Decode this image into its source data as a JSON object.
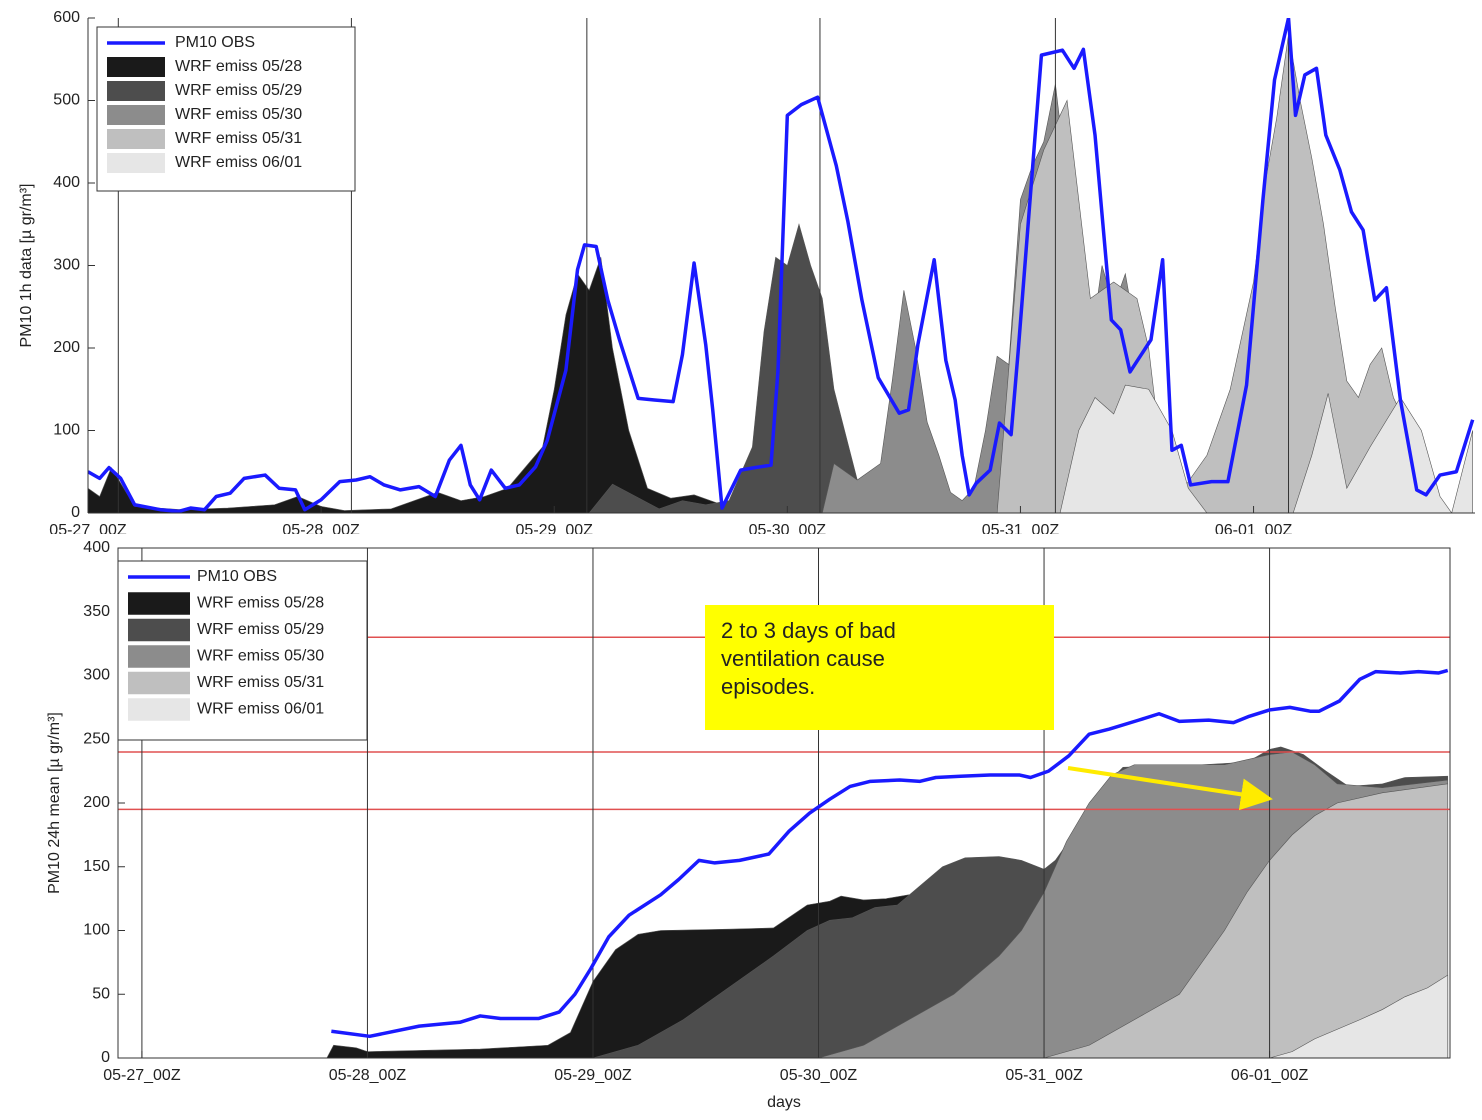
{
  "chart_data": [
    {
      "type": "area",
      "ylabel": "PM10 1h data [µ gr/m³]",
      "xlim": [
        0,
        5.95
      ],
      "ylim": [
        0,
        600
      ],
      "xticks": [
        {
          "value": 0,
          "label": "05-27_00Z"
        },
        {
          "value": 1,
          "label": "05-28_00Z"
        },
        {
          "value": 2,
          "label": "05-29_00Z"
        },
        {
          "value": 3,
          "label": "05-30_00Z"
        },
        {
          "value": 4,
          "label": "05-31_00Z"
        },
        {
          "value": 5,
          "label": "06-01_00Z"
        }
      ],
      "yticks": [
        0,
        100,
        200,
        300,
        400,
        500,
        600
      ],
      "vlines": [
        0.13,
        1.13,
        2.14,
        3.14,
        4.15,
        5.15
      ],
      "legend": "upper left",
      "series": [
        {
          "name": "PM10 OBS",
          "type": "line",
          "color": "#1a1aff",
          "x": [
            0,
            0.05,
            0.09,
            0.14,
            0.2,
            0.31,
            0.39,
            0.44,
            0.5,
            0.55,
            0.61,
            0.67,
            0.76,
            0.82,
            0.89,
            0.93,
            1.0,
            1.08,
            1.15,
            1.21,
            1.27,
            1.34,
            1.42,
            1.49,
            1.55,
            1.6,
            1.64,
            1.68,
            1.73,
            1.79,
            1.85,
            1.92,
            1.97,
            2.05,
            2.1,
            2.13,
            2.18,
            2.23,
            2.28,
            2.36,
            2.43,
            2.51,
            2.55,
            2.6,
            2.65,
            2.68,
            2.72,
            2.8,
            2.86,
            2.93,
            2.96,
            3.0,
            3.06,
            3.13,
            3.21,
            3.26,
            3.32,
            3.39,
            3.48,
            3.52,
            3.56,
            3.63,
            3.68,
            3.72,
            3.75,
            3.78,
            3.81,
            3.87,
            3.91,
            3.96,
            3.99,
            4.09,
            4.18,
            4.23,
            4.27,
            4.32,
            4.39,
            4.43,
            4.47,
            4.56,
            4.61,
            4.65,
            4.69,
            4.73,
            4.82,
            4.89,
            4.97,
            5.04,
            5.09,
            5.15,
            5.18,
            5.22,
            5.27,
            5.31,
            5.37,
            5.42,
            5.47,
            5.52,
            5.57,
            5.63,
            5.7,
            5.74,
            5.8,
            5.87,
            5.94
          ],
          "values": [
            50,
            42,
            55,
            42,
            10,
            4,
            2,
            6,
            4,
            20,
            24,
            42,
            46,
            30,
            28,
            4,
            16,
            38,
            40,
            44,
            34,
            28,
            32,
            20,
            64,
            82,
            34,
            16,
            52,
            30,
            34,
            56,
            88,
            173,
            295,
            325,
            323,
            258,
            210,
            139,
            137,
            135,
            192,
            303,
            204,
            125,
            6,
            52,
            55,
            58,
            173,
            482,
            495,
            504,
            421,
            353,
            258,
            164,
            121,
            125,
            204,
            307,
            185,
            137,
            70,
            22,
            36,
            52,
            109,
            95,
            195,
            555,
            561,
            539,
            562,
            458,
            234,
            222,
            171,
            210,
            307,
            76,
            82,
            34,
            38,
            38,
            155,
            379,
            525,
            600,
            482,
            531,
            539,
            458,
            416,
            365,
            343,
            258,
            273,
            137,
            28,
            22,
            46,
            50,
            113
          ]
        },
        {
          "name": "WRF emiss 05/28",
          "color": "#1a1a1a",
          "x": [
            0,
            0.05,
            0.1,
            0.2,
            0.4,
            0.6,
            0.8,
            0.9,
            1.0,
            1.1,
            1.3,
            1.5,
            1.6,
            1.7,
            1.8,
            1.95,
            2.0,
            2.05,
            2.1,
            2.15,
            2.2,
            2.25,
            2.32,
            2.4,
            2.5,
            2.6,
            2.7,
            2.75
          ],
          "values": [
            30,
            20,
            55,
            8,
            4,
            6,
            10,
            20,
            8,
            3,
            5,
            25,
            15,
            20,
            30,
            80,
            150,
            240,
            290,
            270,
            310,
            200,
            100,
            30,
            18,
            22,
            12,
            0
          ]
        },
        {
          "name": "WRF emiss 05/29",
          "color": "#4d4d4d",
          "x": [
            2.15,
            2.25,
            2.35,
            2.45,
            2.55,
            2.65,
            2.75,
            2.85,
            2.9,
            2.95,
            3.0,
            3.05,
            3.1,
            3.15,
            3.2,
            3.3,
            3.4,
            3.5,
            3.6
          ],
          "values": [
            0,
            35,
            20,
            5,
            15,
            10,
            15,
            80,
            220,
            310,
            300,
            350,
            300,
            260,
            150,
            40,
            20,
            5,
            0
          ]
        },
        {
          "name": "WRF emiss 05/30",
          "color": "#8c8c8c",
          "x": [
            3.15,
            3.2,
            3.3,
            3.4,
            3.45,
            3.5,
            3.55,
            3.6,
            3.65,
            3.7,
            3.75,
            3.8,
            3.85,
            3.9,
            3.95,
            4.0,
            4.05,
            4.1,
            4.15,
            4.2,
            4.25,
            4.3,
            4.35,
            4.4,
            4.45,
            4.5,
            4.55,
            4.6,
            4.65,
            4.7,
            4.75
          ],
          "values": [
            0,
            60,
            40,
            60,
            160,
            270,
            200,
            110,
            70,
            25,
            15,
            30,
            100,
            190,
            180,
            380,
            420,
            450,
            520,
            400,
            280,
            200,
            300,
            250,
            290,
            210,
            120,
            60,
            20,
            10,
            0
          ]
        },
        {
          "name": "WRF emiss 05/31",
          "color": "#bfbfbf",
          "x": [
            3.9,
            4.0,
            4.1,
            4.2,
            4.3,
            4.4,
            4.5,
            4.55,
            4.6,
            4.7,
            4.8,
            4.9,
            5.0,
            5.05,
            5.1,
            5.15,
            5.2,
            5.25,
            5.3,
            5.35,
            5.4,
            5.45,
            5.5,
            5.55,
            5.6,
            5.65,
            5.7
          ],
          "values": [
            0,
            350,
            440,
            500,
            260,
            280,
            260,
            200,
            80,
            30,
            70,
            150,
            280,
            400,
            480,
            580,
            500,
            430,
            350,
            250,
            160,
            140,
            180,
            200,
            140,
            110,
            0
          ]
        },
        {
          "name": "WRF emiss 06/01",
          "color": "#e6e6e6",
          "x": [
            4.17,
            4.25,
            4.32,
            4.4,
            4.45,
            4.55,
            4.65,
            4.72,
            4.8,
            5.17,
            5.25,
            5.32,
            5.4,
            5.5,
            5.63,
            5.72,
            5.8,
            5.85,
            5.94
          ],
          "values": [
            0,
            100,
            140,
            120,
            155,
            150,
            100,
            30,
            0,
            0,
            70,
            145,
            30,
            80,
            140,
            100,
            20,
            0,
            100
          ]
        }
      ]
    },
    {
      "type": "area",
      "ylabel": "PM10 24h mean [µ gr/m³]",
      "xlabel": "days",
      "xlim": [
        -0.106,
        5.8
      ],
      "ylim": [
        0,
        400
      ],
      "xticks": [
        {
          "value": 0,
          "label": "05-27_00Z"
        },
        {
          "value": 1,
          "label": "05-28_00Z"
        },
        {
          "value": 2,
          "label": "05-29_00Z"
        },
        {
          "value": 3,
          "label": "05-30_00Z"
        },
        {
          "value": 4,
          "label": "05-31_00Z"
        },
        {
          "value": 5,
          "label": "06-01_00Z"
        }
      ],
      "yticks": [
        0,
        50,
        100,
        150,
        200,
        250,
        300,
        350,
        400
      ],
      "vlines": [
        0,
        1,
        2,
        3,
        4,
        5
      ],
      "hlines": [
        195,
        240,
        330
      ],
      "hline_color": "#e05050",
      "annotation": "2 to 3 days of bad ventilation cause episodes.",
      "legend": "upper left",
      "series": [
        {
          "name": "PM10 OBS",
          "type": "line",
          "color": "#1a1aff",
          "x": [
            0.84,
            1.01,
            1.23,
            1.41,
            1.5,
            1.59,
            1.76,
            1.85,
            1.92,
            1.99,
            2.07,
            2.16,
            2.3,
            2.38,
            2.47,
            2.54,
            2.65,
            2.78,
            2.87,
            2.96,
            3.05,
            3.14,
            3.23,
            3.36,
            3.45,
            3.52,
            3.63,
            3.76,
            3.89,
            3.94,
            4.02,
            4.11,
            4.2,
            4.29,
            4.42,
            4.51,
            4.6,
            4.73,
            4.84,
            4.91,
            5.0,
            5.09,
            5.18,
            5.22,
            5.31,
            5.4,
            5.47,
            5.58,
            5.66,
            5.75,
            5.79
          ],
          "values": [
            21,
            17,
            25,
            28,
            33,
            31,
            31,
            36,
            50,
            70,
            95,
            112,
            128,
            140,
            155,
            153,
            155,
            160,
            178,
            192,
            203,
            213,
            217,
            218,
            217,
            220,
            221,
            222,
            222,
            220,
            225,
            237,
            254,
            258,
            265,
            270,
            264,
            265,
            263,
            268,
            273,
            275,
            272,
            272,
            280,
            297,
            303,
            302,
            303,
            302,
            304
          ]
        },
        {
          "name": "WRF emiss 05/28",
          "color": "#1a1a1a",
          "x": [
            0.82,
            0.85,
            0.95,
            1.0,
            1.5,
            1.8,
            1.9,
            2.0,
            2.1,
            2.2,
            2.3,
            2.6,
            2.8,
            2.95,
            3.05,
            3.1,
            3.2,
            3.3,
            3.4,
            3.5,
            3.6
          ],
          "values": [
            0,
            10,
            8,
            5,
            7,
            10,
            20,
            60,
            85,
            97,
            100,
            101,
            102,
            120,
            123,
            127,
            124,
            125,
            128,
            120,
            0
          ]
        },
        {
          "name": "WRF emiss 05/29",
          "color": "#4d4d4d",
          "x": [
            2.0,
            2.2,
            2.4,
            2.6,
            2.8,
            2.95,
            3.05,
            3.15,
            3.25,
            3.35,
            3.45,
            3.55,
            3.65,
            3.8,
            3.9,
            4.0,
            4.05,
            4.15,
            4.25,
            4.35,
            4.5,
            4.7,
            4.9,
            5.0,
            5.05,
            5.15,
            5.25,
            5.35,
            5.5,
            5.6,
            5.79
          ],
          "values": [
            0,
            10,
            30,
            55,
            80,
            100,
            108,
            110,
            118,
            120,
            135,
            150,
            157,
            158,
            155,
            148,
            155,
            180,
            210,
            228,
            229,
            230,
            232,
            242,
            244,
            238,
            225,
            213,
            215,
            220,
            221
          ]
        },
        {
          "name": "WRF emiss 05/30",
          "color": "#8c8c8c",
          "x": [
            3.0,
            3.2,
            3.4,
            3.6,
            3.8,
            3.9,
            4.0,
            4.1,
            4.2,
            4.3,
            4.4,
            4.6,
            4.8,
            5.0,
            5.1,
            5.2,
            5.3,
            5.5,
            5.79
          ],
          "values": [
            0,
            10,
            30,
            50,
            80,
            100,
            130,
            170,
            200,
            222,
            230,
            230,
            230,
            238,
            240,
            230,
            215,
            212,
            218
          ]
        },
        {
          "name": "WRF emiss 05/31",
          "color": "#bfbfbf",
          "x": [
            4.0,
            4.2,
            4.4,
            4.6,
            4.8,
            4.9,
            5.0,
            5.1,
            5.2,
            5.3,
            5.5,
            5.79
          ],
          "values": [
            0,
            10,
            30,
            50,
            100,
            130,
            155,
            175,
            190,
            200,
            208,
            215
          ]
        },
        {
          "name": "WRF emiss 06/01",
          "color": "#e6e6e6",
          "x": [
            5.0,
            5.1,
            5.2,
            5.4,
            5.5,
            5.6,
            5.7,
            5.79
          ],
          "values": [
            0,
            5,
            15,
            30,
            38,
            48,
            55,
            65
          ]
        }
      ]
    }
  ]
}
